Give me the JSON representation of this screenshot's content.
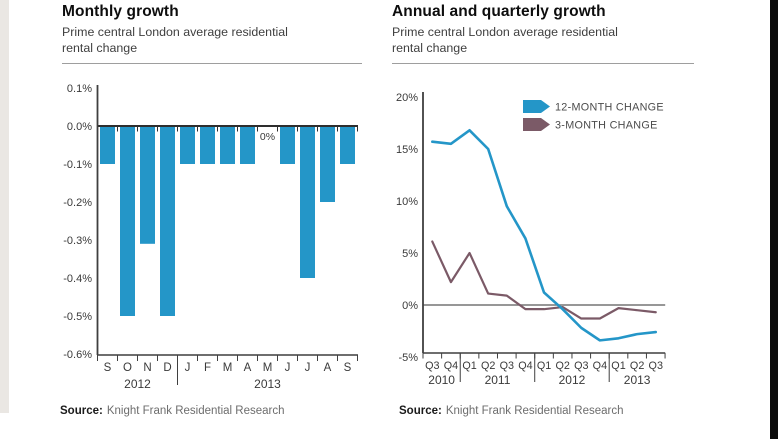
{
  "colors": {
    "accent_blue": "#2496c8",
    "accent_purple": "#7b5a67",
    "axis_dark": "#3f3f3f",
    "zero_line_gray": "#757575",
    "tick_text": "#3a3a3a",
    "legend_text": "#4b4b4b",
    "left_strip": "#eae7e3",
    "right_bar": "#0b0b0b"
  },
  "left_panel": {
    "title": "Monthly growth",
    "subtitle": "Prime central London average residential rental change",
    "source_label": "Source:",
    "source_text": "Knight Frank Residential Research"
  },
  "right_panel": {
    "title": "Annual and quarterly growth",
    "subtitle": "Prime central London average residential rental change",
    "source_label": "Source:",
    "source_text": "Knight Frank Residential Research"
  },
  "chart_data": [
    {
      "type": "bar",
      "title": "Monthly growth",
      "subtitle": "Prime central London average residential rental change",
      "categories": [
        "S",
        "O",
        "N",
        "D",
        "J",
        "F",
        "M",
        "A",
        "M",
        "J",
        "J",
        "A",
        "S"
      ],
      "values": [
        -0.1,
        -0.5,
        -0.31,
        -0.5,
        -0.1,
        -0.1,
        -0.1,
        -0.1,
        0,
        -0.1,
        -0.4,
        -0.2,
        -0.1
      ],
      "year_groups": [
        {
          "label": "2012",
          "from": 0,
          "to": 3
        },
        {
          "label": "2013",
          "from": 4,
          "to": 12
        }
      ],
      "yticks": [
        0.1,
        0,
        -0.1,
        -0.2,
        -0.3,
        -0.4,
        -0.5,
        -0.6
      ],
      "ytick_labels": [
        "0.1%",
        "0.0%",
        "-0.1%",
        "-0.2%",
        "-0.3%",
        "-0.4%",
        "-0.5%",
        "-0.6%"
      ],
      "ylim": [
        -0.6,
        0.1
      ],
      "annotations": [
        {
          "month_index": 8,
          "text": "0%"
        }
      ],
      "bar_color": "#2496c8",
      "grid": false
    },
    {
      "type": "line",
      "title": "Annual and quarterly growth",
      "subtitle": "Prime central London average residential rental change",
      "categories": [
        "Q3",
        "Q4",
        "Q1",
        "Q2",
        "Q3",
        "Q4",
        "Q1",
        "Q2",
        "Q3",
        "Q4",
        "Q1",
        "Q2",
        "Q3"
      ],
      "year_groups": [
        {
          "label": "2010",
          "from": 0,
          "to": 1
        },
        {
          "label": "2011",
          "from": 2,
          "to": 5
        },
        {
          "label": "2012",
          "from": 6,
          "to": 9
        },
        {
          "label": "2013",
          "from": 10,
          "to": 12
        }
      ],
      "yticks": [
        20,
        15,
        10,
        5,
        0,
        -5
      ],
      "ytick_labels": [
        "20%",
        "15%",
        "10%",
        "5%",
        "0%",
        "-5%"
      ],
      "ylim": [
        -5,
        20
      ],
      "zero_line": true,
      "legend_position": "top-right",
      "series": [
        {
          "name": "12-MONTH CHANGE",
          "color": "#2496c8",
          "values": [
            15.7,
            15.5,
            16.8,
            15.0,
            9.5,
            6.4,
            1.2,
            -0.4,
            -2.2,
            -3.4,
            -3.2,
            -2.8,
            -2.6
          ]
        },
        {
          "name": "3-MONTH CHANGE",
          "color": "#7b5a67",
          "values": [
            6.1,
            2.2,
            5.0,
            1.1,
            0.9,
            -0.4,
            -0.4,
            -0.2,
            -1.3,
            -1.3,
            -0.3,
            -0.5,
            -0.7
          ]
        }
      ]
    }
  ]
}
